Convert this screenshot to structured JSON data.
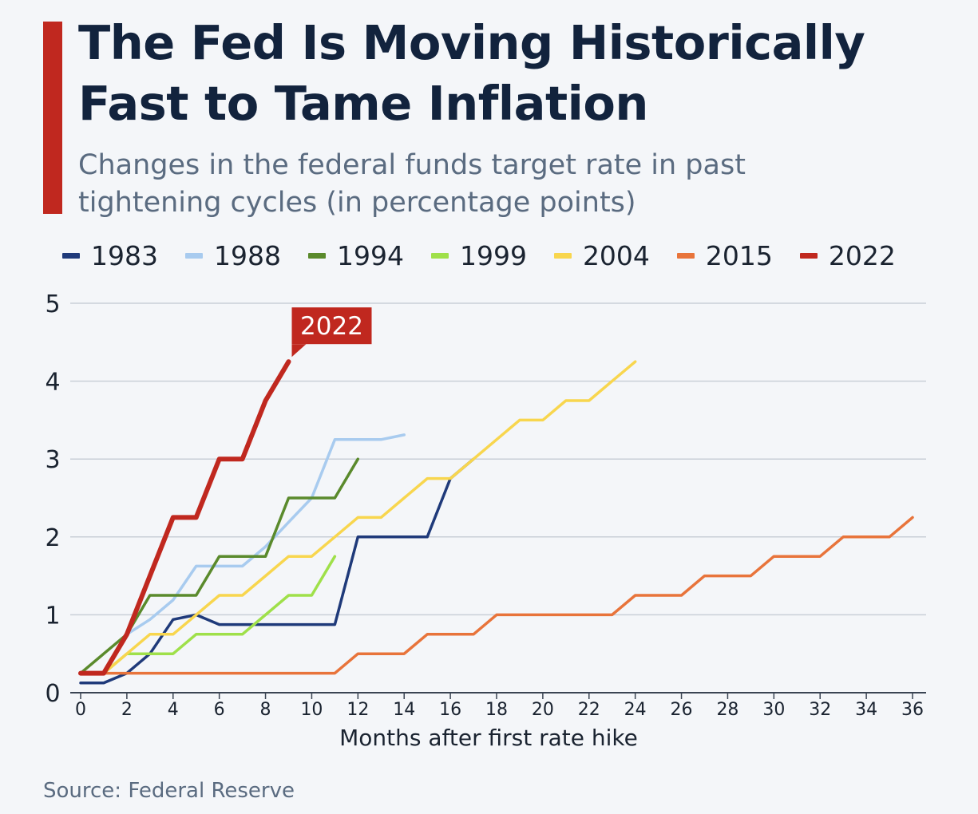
{
  "header": {
    "title": "The Fed Is Moving Historically\nFast to Tame Inflation",
    "subtitle": "Changes in the federal funds target rate in past\ntightening cycles (in percentage points)"
  },
  "footer": {
    "source": "Source: Federal Reserve"
  },
  "colors": {
    "accent": "#c0281f",
    "grid": "#c9cfd8",
    "axis": "#3a4453"
  },
  "chart_data": {
    "type": "line",
    "title": "The Fed Is Moving Historically Fast to Tame Inflation",
    "subtitle": "Changes in the federal funds target rate in past tightening cycles (in percentage points)",
    "xlabel": "Months after first rate hike",
    "ylabel": "",
    "xlim": [
      0,
      36
    ],
    "ylim": [
      0,
      5
    ],
    "x_ticks": [
      0,
      2,
      4,
      6,
      8,
      10,
      12,
      14,
      16,
      18,
      20,
      22,
      24,
      26,
      28,
      30,
      32,
      34,
      36
    ],
    "y_ticks": [
      0,
      1,
      2,
      3,
      4,
      5
    ],
    "grid": true,
    "legend_position": "top",
    "annotation": {
      "text": "2022",
      "series": "2022"
    },
    "series": [
      {
        "name": "1983",
        "color": "#1f3a7a",
        "x": [
          0,
          1,
          2,
          3,
          4,
          5,
          6,
          7,
          8,
          9,
          10,
          11,
          12,
          13,
          14,
          15,
          16,
          17
        ],
        "y": [
          0.125,
          0.125,
          0.25,
          0.5,
          0.94,
          1.0,
          0.875,
          0.875,
          0.875,
          0.875,
          0.875,
          0.875,
          2.0,
          2.0,
          2.0,
          2.0,
          2.75,
          3.0
        ]
      },
      {
        "name": "1988",
        "color": "#a8cbef",
        "x": [
          2,
          3,
          4,
          5,
          6,
          7,
          8,
          9,
          10,
          11,
          12,
          13,
          14
        ],
        "y": [
          0.75,
          0.94,
          1.19,
          1.625,
          1.625,
          1.625,
          1.875,
          2.19,
          2.5,
          3.25,
          3.25,
          3.25,
          3.31
        ]
      },
      {
        "name": "1994",
        "color": "#5a8a2c",
        "x": [
          0,
          1,
          2,
          3,
          4,
          5,
          6,
          7,
          8,
          9,
          10,
          11,
          12
        ],
        "y": [
          0.25,
          0.5,
          0.75,
          1.25,
          1.25,
          1.25,
          1.75,
          1.75,
          1.75,
          2.5,
          2.5,
          2.5,
          3.0
        ]
      },
      {
        "name": "1999",
        "color": "#9fe04a",
        "x": [
          0,
          1,
          2,
          3,
          4,
          5,
          6,
          7,
          8,
          9,
          10,
          11
        ],
        "y": [
          0.25,
          0.25,
          0.5,
          0.5,
          0.5,
          0.75,
          0.75,
          0.75,
          1.0,
          1.25,
          1.25,
          1.75
        ]
      },
      {
        "name": "2004",
        "color": "#f8d64e",
        "x": [
          0,
          1,
          2,
          3,
          4,
          5,
          6,
          7,
          8,
          9,
          10,
          11,
          12,
          13,
          14,
          15,
          16,
          17,
          18,
          19,
          20,
          21,
          22,
          23,
          24
        ],
        "y": [
          0.25,
          0.25,
          0.5,
          0.75,
          0.75,
          1.0,
          1.25,
          1.25,
          1.5,
          1.75,
          1.75,
          2.0,
          2.25,
          2.25,
          2.5,
          2.75,
          2.75,
          3.0,
          3.25,
          3.5,
          3.5,
          3.75,
          3.75,
          4.0,
          4.25
        ]
      },
      {
        "name": "2015",
        "color": "#e8743b",
        "x": [
          0,
          1,
          2,
          3,
          4,
          5,
          6,
          7,
          8,
          9,
          10,
          11,
          12,
          13,
          14,
          15,
          16,
          17,
          18,
          19,
          20,
          21,
          22,
          23,
          24,
          25,
          26,
          27,
          28,
          29,
          30,
          31,
          32,
          33,
          34,
          35,
          36
        ],
        "y": [
          0.25,
          0.25,
          0.25,
          0.25,
          0.25,
          0.25,
          0.25,
          0.25,
          0.25,
          0.25,
          0.25,
          0.25,
          0.5,
          0.5,
          0.5,
          0.75,
          0.75,
          0.75,
          1.0,
          1.0,
          1.0,
          1.0,
          1.0,
          1.0,
          1.25,
          1.25,
          1.25,
          1.5,
          1.5,
          1.5,
          1.75,
          1.75,
          1.75,
          2.0,
          2.0,
          2.0,
          2.25
        ]
      },
      {
        "name": "2022",
        "color": "#c0281f",
        "x": [
          0,
          1,
          2,
          3,
          4,
          5,
          6,
          7,
          8,
          9
        ],
        "y": [
          0.25,
          0.25,
          0.75,
          1.5,
          2.25,
          2.25,
          3.0,
          3.0,
          3.75,
          4.25
        ]
      }
    ]
  }
}
